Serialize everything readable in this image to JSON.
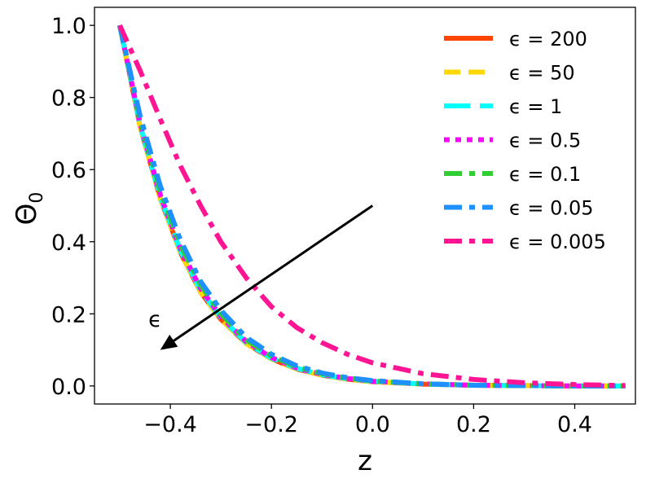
{
  "chart_data": {
    "type": "line",
    "xlabel": "z",
    "ylabel": "Θ",
    "ylabel_sub": "0",
    "xlim": [
      -0.55,
      0.52
    ],
    "ylim": [
      -0.05,
      1.05
    ],
    "xticks": [
      -0.4,
      -0.2,
      0.0,
      0.2,
      0.4
    ],
    "xtick_labels": [
      "−0.4",
      "−0.2",
      "0.0",
      "0.2",
      "0.4"
    ],
    "yticks": [
      0.0,
      0.2,
      0.4,
      0.6,
      0.8,
      1.0
    ],
    "ytick_labels": [
      "0.0",
      "0.2",
      "0.4",
      "0.6",
      "0.8",
      "1.0"
    ],
    "grid": false,
    "legend_position": "top-right",
    "series": [
      {
        "name": "ϵ = 200",
        "color": "#ff4500",
        "dash": "solid",
        "x": [
          -0.5,
          -0.46,
          -0.42,
          -0.38,
          -0.34,
          -0.3,
          -0.25,
          -0.2,
          -0.15,
          -0.1,
          -0.05,
          0.0,
          0.1,
          0.2,
          0.3,
          0.4,
          0.5
        ],
        "y": [
          1.0,
          0.72,
          0.52,
          0.37,
          0.26,
          0.185,
          0.118,
          0.075,
          0.047,
          0.03,
          0.019,
          0.012,
          0.005,
          0.002,
          0.001,
          0.0,
          0.0
        ]
      },
      {
        "name": "ϵ = 50",
        "color": "#ffd700",
        "dash": "dashed",
        "x": [
          -0.5,
          -0.46,
          -0.42,
          -0.38,
          -0.34,
          -0.3,
          -0.25,
          -0.2,
          -0.15,
          -0.1,
          -0.05,
          0.0,
          0.1,
          0.2,
          0.3,
          0.4,
          0.5
        ],
        "y": [
          1.0,
          0.72,
          0.52,
          0.37,
          0.26,
          0.185,
          0.118,
          0.075,
          0.047,
          0.03,
          0.019,
          0.012,
          0.005,
          0.002,
          0.001,
          0.0,
          0.0
        ]
      },
      {
        "name": "ϵ = 1",
        "color": "#00ffff",
        "dash": "longdash",
        "x": [
          -0.5,
          -0.46,
          -0.42,
          -0.38,
          -0.34,
          -0.3,
          -0.25,
          -0.2,
          -0.15,
          -0.1,
          -0.05,
          0.0,
          0.1,
          0.2,
          0.3,
          0.4,
          0.5
        ],
        "y": [
          1.0,
          0.725,
          0.525,
          0.375,
          0.265,
          0.19,
          0.12,
          0.077,
          0.049,
          0.031,
          0.02,
          0.013,
          0.005,
          0.002,
          0.001,
          0.0,
          0.0
        ]
      },
      {
        "name": "ϵ = 0.5",
        "color": "#ff00ff",
        "dash": "dotted",
        "x": [
          -0.5,
          -0.46,
          -0.42,
          -0.38,
          -0.34,
          -0.3,
          -0.25,
          -0.2,
          -0.15,
          -0.1,
          -0.05,
          0.0,
          0.1,
          0.2,
          0.3,
          0.4,
          0.5
        ],
        "y": [
          1.0,
          0.73,
          0.53,
          0.38,
          0.27,
          0.193,
          0.123,
          0.079,
          0.05,
          0.032,
          0.021,
          0.013,
          0.006,
          0.002,
          0.001,
          0.0,
          0.0
        ]
      },
      {
        "name": "ϵ = 0.1",
        "color": "#32cd32",
        "dash": "dashdot",
        "x": [
          -0.5,
          -0.46,
          -0.42,
          -0.38,
          -0.34,
          -0.3,
          -0.25,
          -0.2,
          -0.15,
          -0.1,
          -0.05,
          0.0,
          0.1,
          0.2,
          0.3,
          0.4,
          0.5
        ],
        "y": [
          1.0,
          0.74,
          0.54,
          0.39,
          0.28,
          0.2,
          0.128,
          0.083,
          0.053,
          0.034,
          0.022,
          0.014,
          0.006,
          0.002,
          0.001,
          0.0,
          0.0
        ]
      },
      {
        "name": "ϵ = 0.05",
        "color": "#1e90ff",
        "dash": "dashdot",
        "x": [
          -0.5,
          -0.46,
          -0.42,
          -0.38,
          -0.34,
          -0.3,
          -0.25,
          -0.2,
          -0.15,
          -0.1,
          -0.05,
          0.0,
          0.1,
          0.2,
          0.3,
          0.4,
          0.5
        ],
        "y": [
          1.0,
          0.75,
          0.555,
          0.405,
          0.29,
          0.21,
          0.135,
          0.088,
          0.056,
          0.036,
          0.023,
          0.015,
          0.006,
          0.002,
          0.001,
          0.0,
          0.0
        ]
      },
      {
        "name": "ϵ = 0.005",
        "color": "#ff1493",
        "dash": "dashdot",
        "x": [
          -0.5,
          -0.46,
          -0.42,
          -0.38,
          -0.34,
          -0.3,
          -0.25,
          -0.2,
          -0.15,
          -0.1,
          -0.05,
          0.0,
          0.1,
          0.2,
          0.3,
          0.4,
          0.5
        ],
        "y": [
          1.0,
          0.875,
          0.74,
          0.61,
          0.5,
          0.4,
          0.3,
          0.22,
          0.162,
          0.12,
          0.088,
          0.064,
          0.034,
          0.018,
          0.009,
          0.004,
          0.001
        ]
      }
    ],
    "annotations": [
      {
        "text": "ϵ",
        "arrow_from": [
          0.0,
          0.5
        ],
        "arrow_to": [
          -0.42,
          0.1
        ],
        "text_at": [
          -0.43,
          0.165
        ]
      }
    ]
  }
}
